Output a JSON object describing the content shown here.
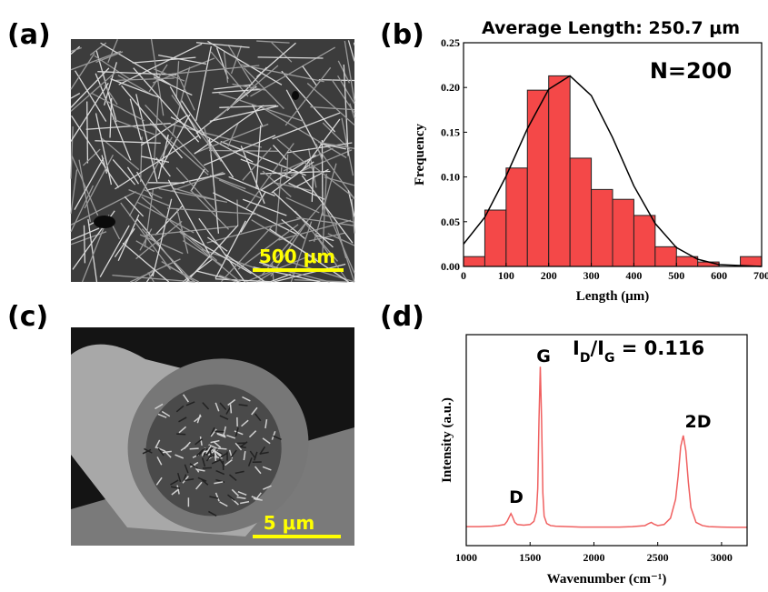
{
  "panel_labels": [
    "(a)",
    "(b)",
    "(c)",
    "(d)"
  ],
  "images": [
    {
      "scale_bar": "500 μm"
    },
    {
      "scale_bar": "5 μm"
    }
  ],
  "chart_data": [
    {
      "type": "histogram",
      "title": "Average Length: 250.7 μm",
      "annotation": "N=200",
      "x_label": "Length (μm)",
      "y_label": "Frequency",
      "color": "#f44848",
      "line_color": "#000000",
      "bins": [
        0,
        50,
        100,
        150,
        200,
        250,
        300,
        350,
        400,
        450,
        500,
        550,
        600,
        650,
        700
      ],
      "counts": [
        0.011,
        0.063,
        0.11,
        0.197,
        0.213,
        0.121,
        0.086,
        0.075,
        0.057,
        0.022,
        0.011,
        0.005,
        0,
        0.011
      ],
      "fit": {
        "x": [
          0,
          50,
          100,
          150,
          200,
          250,
          300,
          350,
          400,
          450,
          500,
          550,
          600,
          650,
          700
        ],
        "values": [
          0.025,
          0.055,
          0.101,
          0.154,
          0.198,
          0.213,
          0.191,
          0.144,
          0.09,
          0.048,
          0.021,
          0.008,
          0.002,
          0.001,
          0
        ]
      },
      "xlim": [
        0,
        700
      ],
      "xticks": [
        0,
        100,
        200,
        300,
        400,
        500,
        600,
        700
      ],
      "ylim": [
        0,
        0.25
      ],
      "yticks": [
        {
          "value": 0,
          "label": "0.00"
        },
        {
          "value": 0.05,
          "label": "0.05"
        },
        {
          "value": 0.1,
          "label": "0.10"
        },
        {
          "value": 0.15,
          "label": "0.15"
        },
        {
          "value": 0.2,
          "label": "0.20"
        },
        {
          "value": 0.25,
          "label": "0.25"
        }
      ]
    },
    {
      "type": "line",
      "x_label": "Wavenumber (cm⁻¹)",
      "y_label": "Intensity (a.u.)",
      "color": "#f06060",
      "ratio_label": [
        "I",
        "D",
        "/I",
        "G",
        " = 0.116"
      ],
      "peaks": [
        "D",
        "G",
        "2D"
      ],
      "x": [
        1000,
        1100,
        1200,
        1250,
        1300,
        1320,
        1340,
        1350,
        1360,
        1380,
        1400,
        1450,
        1500,
        1530,
        1550,
        1560,
        1570,
        1580,
        1590,
        1600,
        1610,
        1630,
        1660,
        1700,
        1800,
        1900,
        2000,
        2100,
        2200,
        2300,
        2400,
        2430,
        2450,
        2470,
        2500,
        2550,
        2600,
        2640,
        2660,
        2680,
        2700,
        2720,
        2740,
        2760,
        2800,
        2850,
        2900,
        3000,
        3100,
        3200
      ],
      "values": [
        0.09,
        0.09,
        0.092,
        0.095,
        0.1,
        0.115,
        0.14,
        0.152,
        0.14,
        0.11,
        0.1,
        0.097,
        0.1,
        0.115,
        0.16,
        0.27,
        0.6,
        0.848,
        0.6,
        0.25,
        0.14,
        0.105,
        0.095,
        0.092,
        0.09,
        0.088,
        0.088,
        0.088,
        0.088,
        0.09,
        0.095,
        0.105,
        0.11,
        0.102,
        0.095,
        0.1,
        0.13,
        0.22,
        0.33,
        0.47,
        0.522,
        0.45,
        0.3,
        0.18,
        0.11,
        0.095,
        0.09,
        0.088,
        0.087,
        0.087
      ],
      "xlim": [
        1000,
        3200
      ],
      "xticks": [
        1000,
        1500,
        2000,
        2500,
        3000
      ],
      "ylim": [
        0,
        1
      ]
    }
  ]
}
